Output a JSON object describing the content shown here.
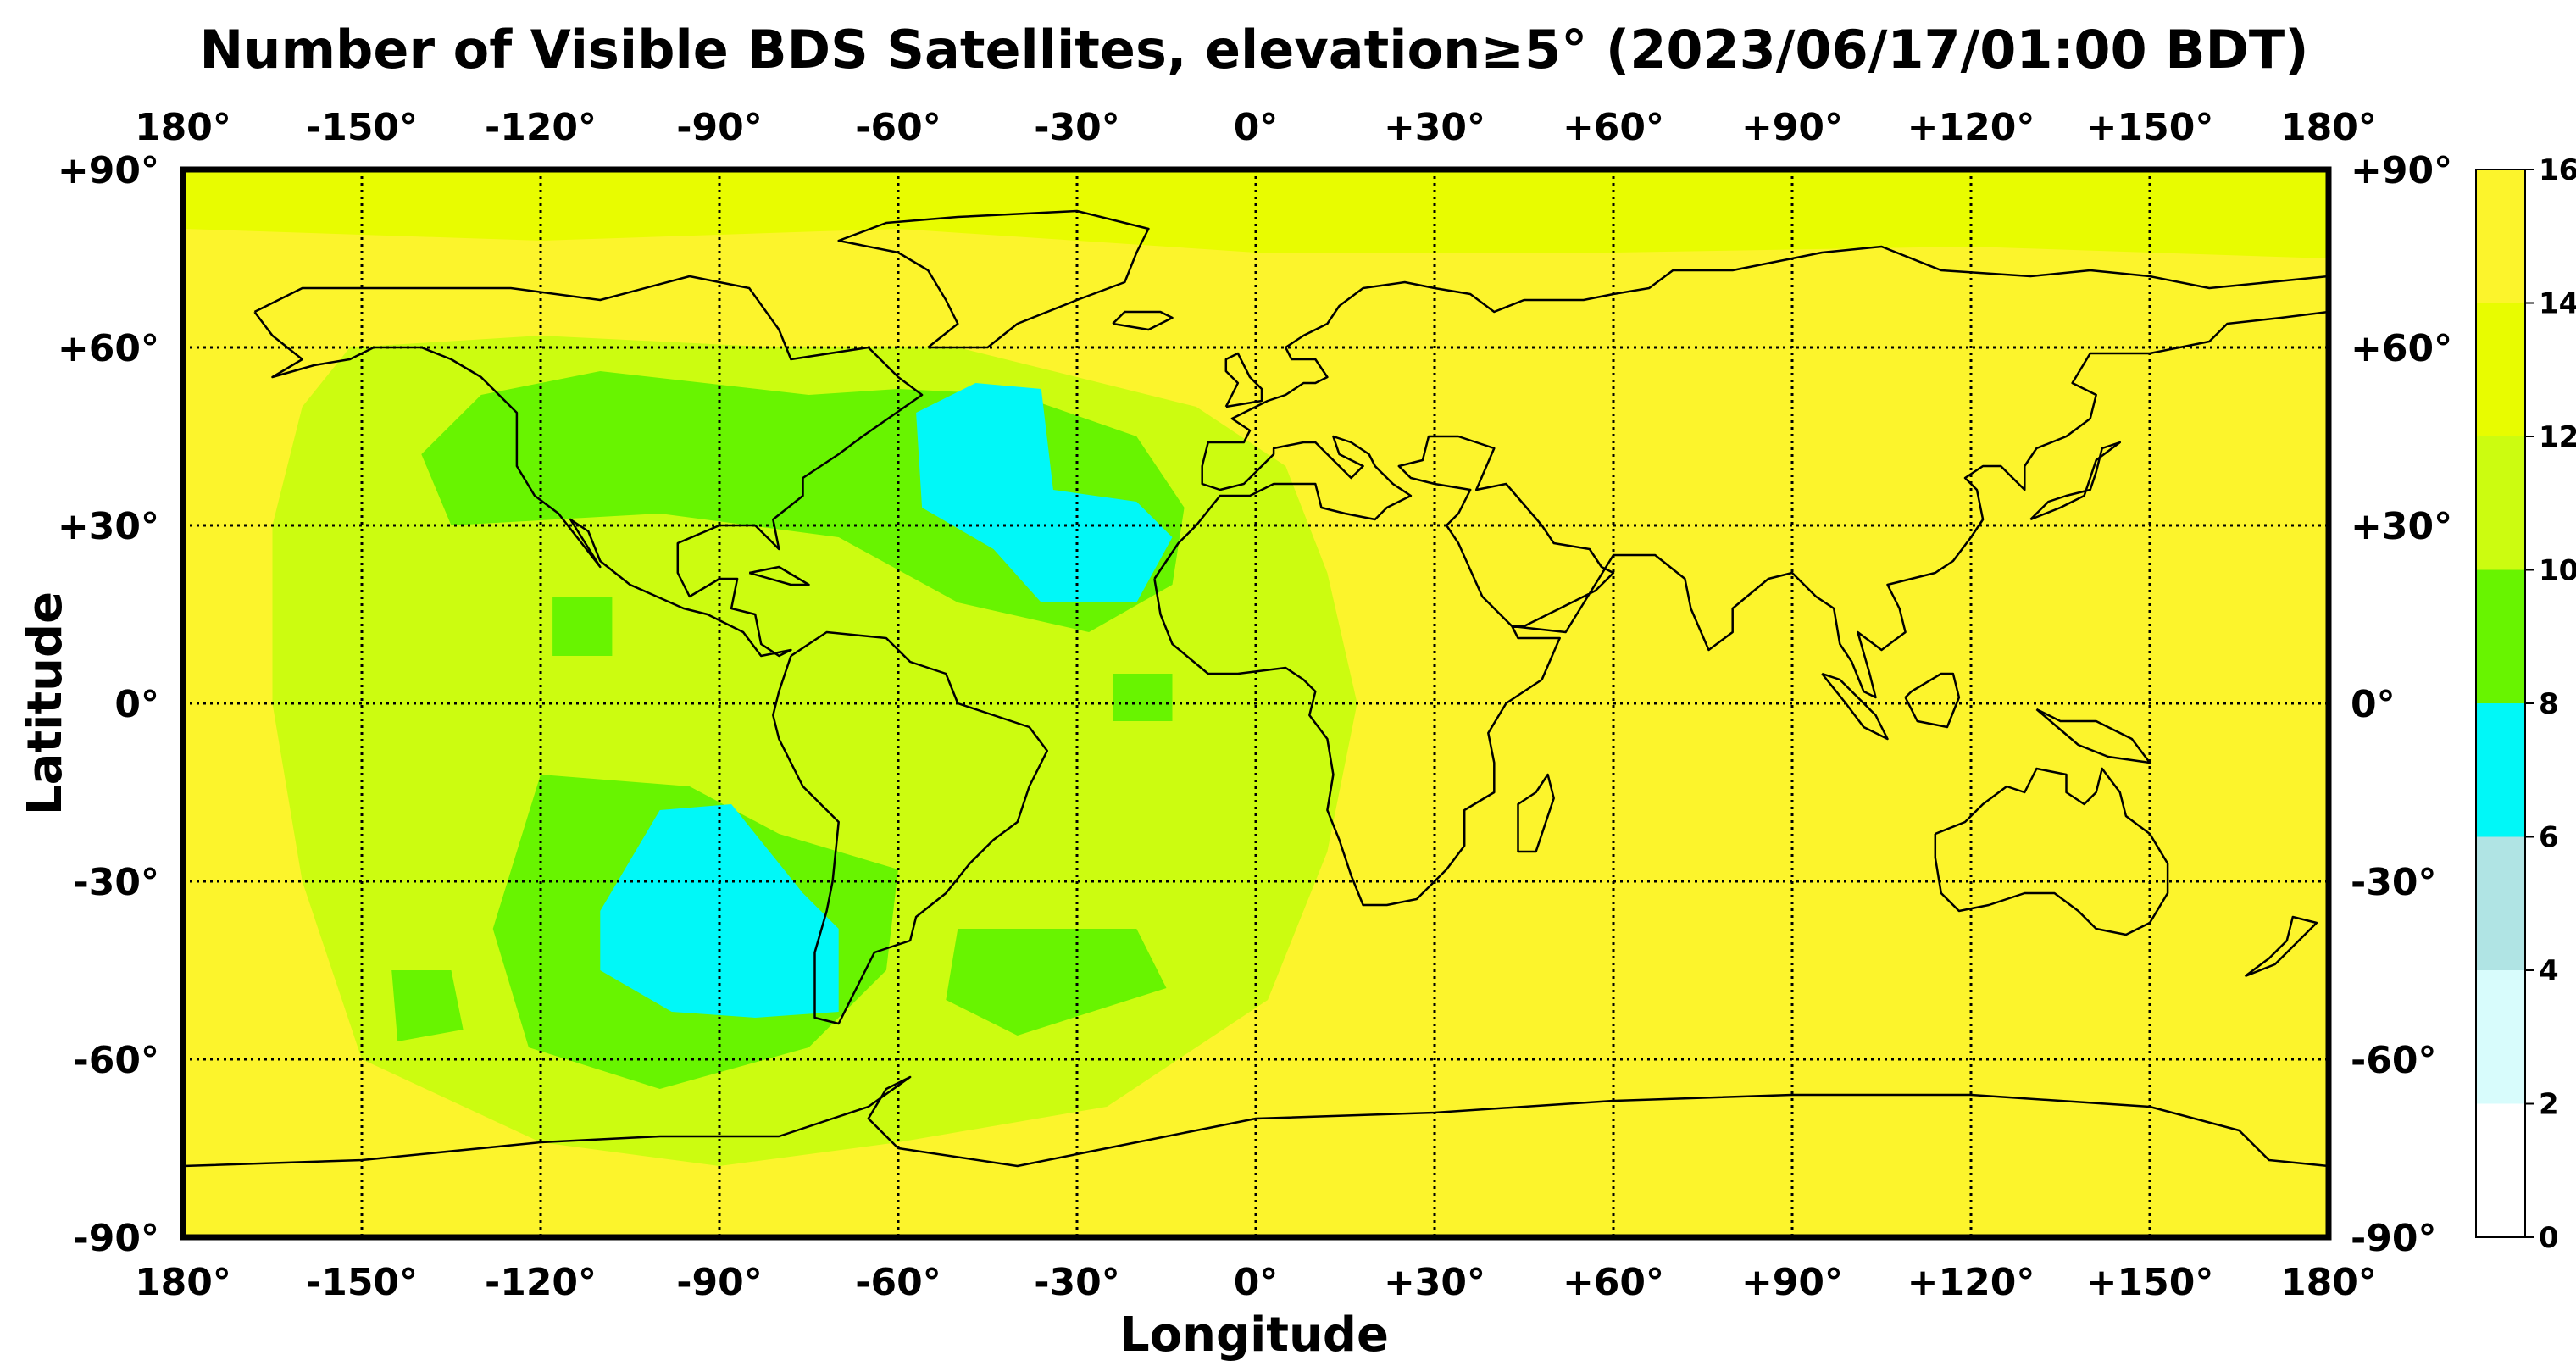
{
  "chart_data": {
    "type": "heatmap",
    "title": "Number of Visible BDS Satellites, elevation≥5° (2023/06/17/01:00 BDT)",
    "xlabel": "Longitude",
    "ylabel": "Latitude",
    "xlim": [
      -180,
      180
    ],
    "ylim": [
      -90,
      90
    ],
    "grid": true,
    "x_ticks": [
      {
        "value": -180,
        "label": "180°"
      },
      {
        "value": -150,
        "label": "-150°"
      },
      {
        "value": -120,
        "label": "-120°"
      },
      {
        "value": -90,
        "label": "-90°"
      },
      {
        "value": -60,
        "label": "-60°"
      },
      {
        "value": -30,
        "label": "-30°"
      },
      {
        "value": 0,
        "label": "0°"
      },
      {
        "value": 30,
        "label": "+30°"
      },
      {
        "value": 60,
        "label": "+60°"
      },
      {
        "value": 90,
        "label": "+90°"
      },
      {
        "value": 120,
        "label": "+120°"
      },
      {
        "value": 150,
        "label": "+150°"
      },
      {
        "value": 180,
        "label": "180°"
      }
    ],
    "y_ticks": [
      {
        "value": 90,
        "label": "+90°"
      },
      {
        "value": 60,
        "label": "+60°"
      },
      {
        "value": 30,
        "label": "+30°"
      },
      {
        "value": 0,
        "label": "0°"
      },
      {
        "value": -30,
        "label": "-30°"
      },
      {
        "value": -60,
        "label": "-60°"
      },
      {
        "value": -90,
        "label": "-90°"
      }
    ],
    "colorbar": {
      "position": "right",
      "tick_labels": [
        "0",
        "2",
        "4",
        "6",
        "8",
        "10",
        "12",
        "14",
        "16"
      ],
      "levels": [
        {
          "min": 0,
          "max": 2,
          "color": "#ffffff"
        },
        {
          "min": 2,
          "max": 4,
          "color": "#d8fcfc"
        },
        {
          "min": 4,
          "max": 6,
          "color": "#b0e4e4"
        },
        {
          "min": 6,
          "max": 8,
          "color": "#00f8f8"
        },
        {
          "min": 8,
          "max": 10,
          "color": "#68f400"
        },
        {
          "min": 10,
          "max": 12,
          "color": "#ccfc10"
        },
        {
          "min": 12,
          "max": 14,
          "color": "#e8fc00"
        },
        {
          "min": 14,
          "max": 16,
          "color": "#fcf42c"
        }
      ]
    },
    "background_count": 15,
    "regions": [
      {
        "count": 13,
        "points": [
          [
            -180,
            90
          ],
          [
            180,
            90
          ],
          [
            180,
            75
          ],
          [
            120,
            77
          ],
          [
            60,
            76
          ],
          [
            0,
            76
          ],
          [
            -60,
            80
          ],
          [
            -120,
            78
          ],
          [
            -180,
            80
          ]
        ]
      },
      {
        "count": 11,
        "points": [
          [
            -152,
            60
          ],
          [
            -120,
            62
          ],
          [
            -80,
            60
          ],
          [
            -50,
            60
          ],
          [
            -30,
            55
          ],
          [
            -10,
            50
          ],
          [
            5,
            40
          ],
          [
            12,
            22
          ],
          [
            17,
            0
          ],
          [
            12,
            -25
          ],
          [
            2,
            -50
          ],
          [
            -25,
            -68
          ],
          [
            -60,
            -74
          ],
          [
            -90,
            -78
          ],
          [
            -120,
            -74
          ],
          [
            -150,
            -60
          ],
          [
            -160,
            -30
          ],
          [
            -165,
            0
          ],
          [
            -165,
            30
          ],
          [
            -160,
            50
          ]
        ]
      },
      {
        "count": 9,
        "points": [
          [
            -140,
            42
          ],
          [
            -130,
            52
          ],
          [
            -110,
            56
          ],
          [
            -75,
            52
          ],
          [
            -60,
            53
          ],
          [
            -40,
            52
          ],
          [
            -20,
            45
          ],
          [
            -12,
            33
          ],
          [
            -14,
            20
          ],
          [
            -28,
            12
          ],
          [
            -50,
            17
          ],
          [
            -70,
            28
          ],
          [
            -100,
            32
          ],
          [
            -135,
            30
          ]
        ]
      },
      {
        "count": 9,
        "points": [
          [
            -120,
            -12
          ],
          [
            -95,
            -14
          ],
          [
            -80,
            -22
          ],
          [
            -60,
            -28
          ],
          [
            -62,
            -45
          ],
          [
            -75,
            -58
          ],
          [
            -100,
            -65
          ],
          [
            -122,
            -58
          ],
          [
            -128,
            -38
          ]
        ]
      },
      {
        "count": 9,
        "points": [
          [
            -50,
            -38
          ],
          [
            -20,
            -38
          ],
          [
            -15,
            -48
          ],
          [
            -40,
            -56
          ],
          [
            -52,
            -50
          ]
        ]
      },
      {
        "count": 9,
        "points": [
          [
            -145,
            -45
          ],
          [
            -135,
            -45
          ],
          [
            -133,
            -55
          ],
          [
            -144,
            -57
          ]
        ]
      },
      {
        "count": 9,
        "points": [
          [
            -118,
            18
          ],
          [
            -108,
            18
          ],
          [
            -108,
            8
          ],
          [
            -118,
            8
          ]
        ]
      },
      {
        "count": 9,
        "points": [
          [
            -24,
            5
          ],
          [
            -14,
            5
          ],
          [
            -14,
            -3
          ],
          [
            -24,
            -3
          ]
        ]
      },
      {
        "count": 7,
        "points": [
          [
            -57,
            49
          ],
          [
            -47,
            54
          ],
          [
            -36,
            53
          ],
          [
            -34,
            36
          ],
          [
            -20,
            34
          ],
          [
            -14,
            28
          ],
          [
            -20,
            17
          ],
          [
            -36,
            17
          ],
          [
            -44,
            26
          ],
          [
            -56,
            33
          ]
        ]
      },
      {
        "count": 7,
        "points": [
          [
            -110,
            -35
          ],
          [
            -100,
            -18
          ],
          [
            -88,
            -17
          ],
          [
            -76,
            -32
          ],
          [
            -70,
            -38
          ],
          [
            -70,
            -52
          ],
          [
            -84,
            -53
          ],
          [
            -98,
            -52
          ],
          [
            -110,
            -45
          ]
        ]
      }
    ]
  }
}
